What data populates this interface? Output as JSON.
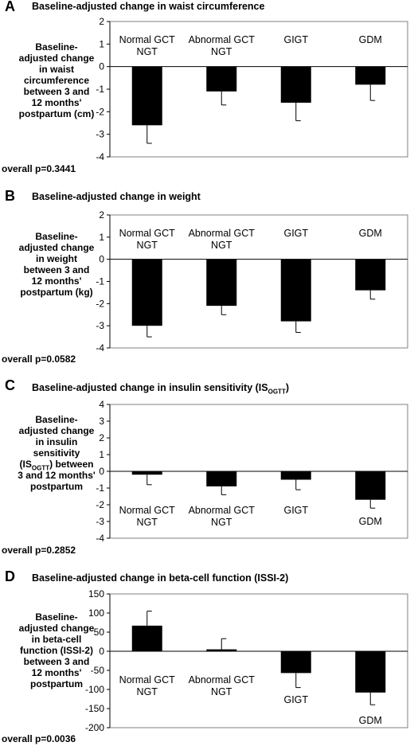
{
  "panels": [
    {
      "letter": "A",
      "title": "Baseline-adjusted change in waist circumference",
      "ylabel": "Baseline-adjusted change in waist circumference between 3 and 12 months' postpartum (cm)",
      "pvalue": "overall p=0.3441"
    },
    {
      "letter": "B",
      "title": "Baseline-adjusted change in weight",
      "ylabel": "Baseline-adjusted change in weight between 3 and 12 months' postpartum (kg)",
      "pvalue": "overall p=0.0582"
    },
    {
      "letter": "C",
      "title_main": "Baseline-adjusted change in insulin sensitivity (IS",
      "title_sub": "OGTT",
      "title_end": ")",
      "ylabel_pre": "Baseline-adjusted change in insulin sensitivity (IS",
      "ylabel_sub": "OGTT",
      "ylabel_post": ") between 3 and 12 months' postpartum",
      "pvalue": "overall p=0.2852"
    },
    {
      "letter": "D",
      "title": "Baseline-adjusted change in beta-cell function (ISSI-2)",
      "ylabel": "Baseline-adjusted change in beta-cell function (ISSI-2) between 3 and 12 months' postpartum",
      "pvalue": "overall p=0.0036"
    }
  ],
  "chart_data": [
    {
      "type": "bar",
      "title": "Baseline-adjusted change in waist circumference",
      "categories": [
        "Normal GCT\nNGT",
        "Abnormal GCT\nNGT",
        "GIGT",
        "GDM"
      ],
      "values": [
        -2.6,
        -1.1,
        -1.6,
        -0.8
      ],
      "errors": [
        0.8,
        0.6,
        0.8,
        0.7
      ],
      "ylim": [
        -4,
        2
      ],
      "yticks": [
        2,
        1,
        0,
        -1,
        -2,
        -3,
        -4
      ],
      "label_position": "top",
      "bar_color": "#000000"
    },
    {
      "type": "bar",
      "title": "Baseline-adjusted change in weight",
      "categories": [
        "Normal GCT\nNGT",
        "Abnormal GCT\nNGT",
        "GIGT",
        "GDM"
      ],
      "values": [
        -3.0,
        -2.1,
        -2.8,
        -1.4
      ],
      "errors": [
        0.5,
        0.4,
        0.5,
        0.4
      ],
      "ylim": [
        -4,
        2
      ],
      "yticks": [
        2,
        1,
        0,
        -1,
        -2,
        -3,
        -4
      ],
      "label_position": "top",
      "bar_color": "#000000"
    },
    {
      "type": "bar",
      "title": "Baseline-adjusted change in insulin sensitivity (ISOGTT)",
      "categories": [
        "Normal GCT\nNGT",
        "Abnormal GCT\nNGT",
        "GIGT",
        "GDM"
      ],
      "values": [
        -0.2,
        -0.9,
        -0.5,
        -1.7
      ],
      "errors": [
        0.6,
        0.5,
        0.6,
        0.5
      ],
      "ylim": [
        -4,
        4
      ],
      "yticks": [
        4,
        3,
        2,
        1,
        0,
        -1,
        -2,
        -3,
        -4
      ],
      "label_position": "bottom",
      "bar_color": "#000000"
    },
    {
      "type": "bar",
      "title": "Baseline-adjusted change in beta-cell function (ISSI-2)",
      "categories": [
        "Normal GCT\nNGT",
        "Abnormal GCT\nNGT",
        "GIGT",
        "GDM"
      ],
      "values": [
        67,
        5,
        -57,
        -108
      ],
      "errors": [
        38,
        28,
        38,
        32
      ],
      "ylim": [
        -200,
        150
      ],
      "yticks": [
        150,
        100,
        50,
        0,
        -50,
        -100,
        -150,
        -200
      ],
      "label_position": "mixed",
      "bar_color": "#000000"
    }
  ]
}
